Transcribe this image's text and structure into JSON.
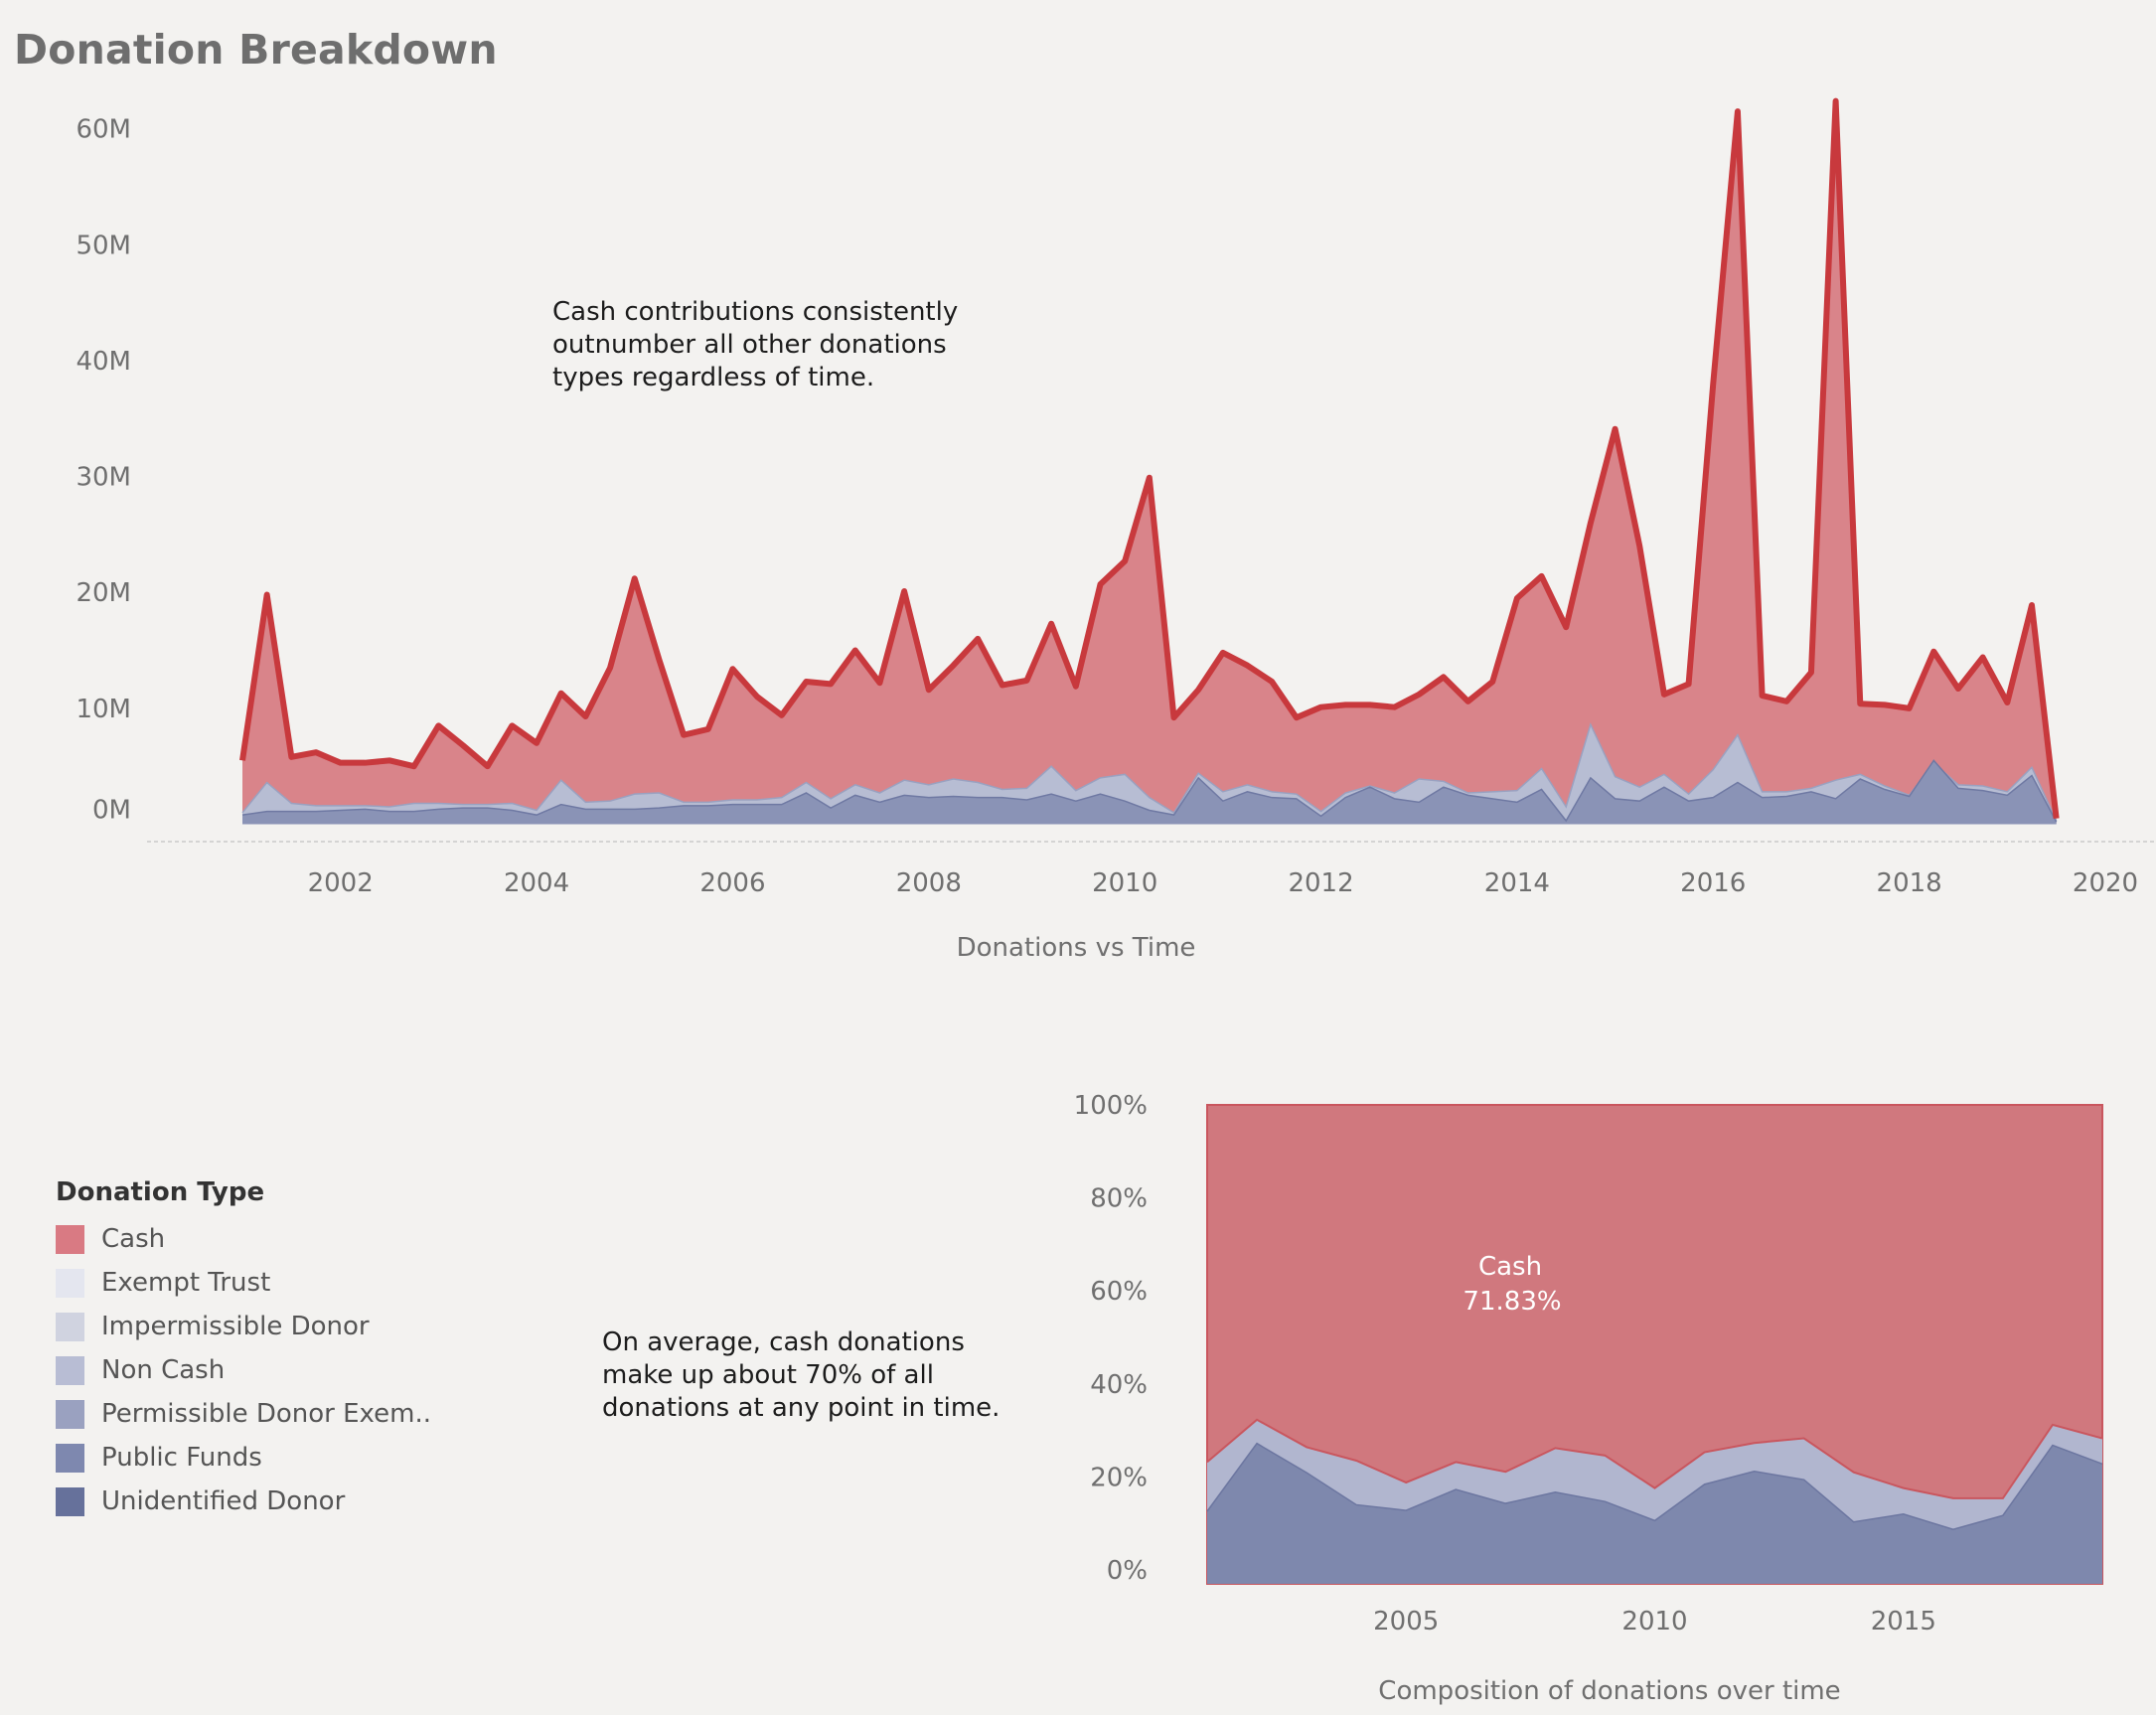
{
  "title": "Donation Breakdown",
  "annotations": {
    "top": [
      "Cash contributions consistently",
      "outnumber all other donations",
      "types regardless of time."
    ],
    "bottom": [
      "On average, cash donations",
      "make up about 70% of all",
      "donations at any point in time."
    ]
  },
  "legend": {
    "title": "Donation Type",
    "items": [
      {
        "label": "Cash",
        "color": "#d97a83"
      },
      {
        "label": "Exempt Trust",
        "color": "#e4e6ef"
      },
      {
        "label": "Impermissible Donor",
        "color": "#d0d3e0"
      },
      {
        "label": "Non Cash",
        "color": "#b8bdd4"
      },
      {
        "label": "Permissible Donor Exem..",
        "color": "#9aa1c0"
      },
      {
        "label": "Public Funds",
        "color": "#7e88af"
      },
      {
        "label": "Unidentified Donor",
        "color": "#66719b"
      }
    ]
  },
  "chart_data": [
    {
      "type": "area",
      "xlabel": "Donations vs Time",
      "ylabel": "",
      "y_ticks": [
        "0M",
        "10M",
        "20M",
        "30M",
        "40M",
        "50M",
        "60M"
      ],
      "y_tick_values": [
        0,
        10,
        20,
        30,
        40,
        50,
        60
      ],
      "x_ticks": [
        "2002",
        "2004",
        "2006",
        "2008",
        "2010",
        "2012",
        "2014",
        "2016",
        "2018",
        "2020"
      ],
      "x_tick_values": [
        2002,
        2004,
        2006,
        2008,
        2010,
        2012,
        2014,
        2016,
        2018,
        2020
      ],
      "xlim": [
        2001.0,
        2020.0
      ],
      "ylim": [
        -1.5,
        64
      ],
      "stacked": true,
      "colors": {
        "total_line": "#c8393d",
        "cash_fill": "#d9848a",
        "other_fill": "#b7bdd3",
        "base_fill": "#8a93b6"
      },
      "x": [
        2001.0,
        2001.25,
        2001.5,
        2001.75,
        2002.0,
        2002.25,
        2002.5,
        2002.75,
        2003.0,
        2003.25,
        2003.5,
        2003.75,
        2004.0,
        2004.25,
        2004.5,
        2004.75,
        2005.0,
        2005.25,
        2005.5,
        2005.75,
        2006.0,
        2006.25,
        2006.5,
        2006.75,
        2007.0,
        2007.25,
        2007.5,
        2007.75,
        2008.0,
        2008.25,
        2008.5,
        2008.75,
        2009.0,
        2009.25,
        2009.5,
        2009.75,
        2010.0,
        2010.25,
        2010.5,
        2010.75,
        2011.0,
        2011.25,
        2011.5,
        2011.75,
        2012.0,
        2012.25,
        2012.5,
        2012.75,
        2013.0,
        2013.25,
        2013.5,
        2013.75,
        2014.0,
        2014.25,
        2014.5,
        2014.75,
        2015.0,
        2015.25,
        2015.5,
        2015.75,
        2016.0,
        2016.25,
        2016.5,
        2016.75,
        2017.0,
        2017.25,
        2017.5,
        2017.75,
        2018.0,
        2018.25,
        2018.5,
        2018.75,
        2019.0,
        2019.25,
        2019.5
      ],
      "series": [
        {
          "name": "Total",
          "values": [
            5.5,
            19.8,
            5.8,
            6.2,
            5.3,
            5.3,
            5.5,
            5.0,
            8.5,
            6.8,
            5.0,
            8.5,
            7.0,
            11.3,
            9.3,
            13.5,
            21.2,
            14.2,
            7.7,
            8.2,
            13.4,
            11.0,
            9.4,
            12.3,
            12.1,
            15.0,
            12.2,
            20.1,
            11.6,
            13.7,
            16.0,
            12.0,
            12.4,
            17.3,
            11.9,
            20.7,
            22.7,
            29.9,
            9.2,
            11.6,
            14.8,
            13.7,
            12.3,
            9.2,
            10.1,
            10.3,
            10.3,
            10.1,
            11.2,
            12.7,
            10.6,
            12.3,
            19.5,
            21.4,
            17.0,
            26.0,
            34.1,
            24.0,
            11.2,
            12.1,
            38.0,
            61.5,
            11.1,
            10.6,
            13.1,
            62.4,
            10.4,
            10.3,
            10.0,
            14.9,
            11.7,
            14.4,
            10.5,
            18.9,
            0.5
          ]
        },
        {
          "name": "Other",
          "values": [
            1.0,
            3.6,
            1.8,
            1.6,
            1.6,
            1.6,
            1.5,
            1.8,
            1.8,
            1.7,
            1.7,
            1.8,
            1.2,
            3.8,
            1.9,
            2.0,
            2.6,
            2.7,
            1.9,
            1.9,
            2.1,
            2.1,
            2.3,
            3.6,
            2.2,
            3.4,
            2.7,
            3.8,
            3.4,
            3.9,
            3.6,
            3.0,
            3.1,
            5.0,
            2.9,
            4.0,
            4.3,
            2.3,
            1.0,
            4.4,
            2.8,
            3.4,
            2.8,
            2.6,
            1.1,
            2.7,
            3.3,
            2.7,
            3.9,
            3.7,
            2.7,
            2.8,
            2.9,
            4.8,
            1.5,
            8.6,
            4.1,
            3.2,
            4.3,
            2.6,
            4.7,
            7.7,
            2.8,
            2.8,
            3.1,
            3.8,
            4.3,
            3.3,
            2.5,
            5.3,
            3.4,
            3.3,
            2.8,
            4.9,
            0.3
          ]
        },
        {
          "name": "Base",
          "values": [
            0.8,
            1.1,
            1.1,
            1.1,
            1.2,
            1.3,
            1.1,
            1.1,
            1.3,
            1.4,
            1.4,
            1.2,
            0.8,
            1.7,
            1.3,
            1.3,
            1.3,
            1.4,
            1.6,
            1.6,
            1.7,
            1.7,
            1.7,
            2.7,
            1.4,
            2.5,
            1.9,
            2.5,
            2.3,
            2.4,
            2.3,
            2.3,
            2.1,
            2.6,
            2.0,
            2.6,
            2.0,
            1.2,
            0.8,
            4.0,
            2.0,
            2.8,
            2.3,
            2.2,
            0.7,
            2.3,
            3.2,
            2.2,
            1.9,
            3.2,
            2.5,
            2.2,
            1.9,
            3.0,
            0.3,
            4.0,
            2.2,
            2.0,
            3.2,
            2.0,
            2.3,
            3.6,
            2.3,
            2.4,
            2.8,
            2.2,
            3.9,
            3.0,
            2.4,
            5.5,
            3.1,
            2.9,
            2.5,
            4.2,
            0.2
          ]
        }
      ]
    },
    {
      "type": "area",
      "xlabel": "Composition of donations over time",
      "ylabel": "",
      "stacked": true,
      "percent": true,
      "y_ticks": [
        "0%",
        "20%",
        "40%",
        "60%",
        "80%",
        "100%"
      ],
      "y_tick_values": [
        0,
        20,
        40,
        60,
        80,
        100
      ],
      "x_ticks": [
        "2005",
        "2010",
        "2015"
      ],
      "x_tick_values": [
        2005,
        2010,
        2015
      ],
      "xlim": [
        2001,
        2019
      ],
      "ylim": [
        -3,
        100
      ],
      "annotation": {
        "label": "Cash",
        "value": "71.83%"
      },
      "colors": {
        "cash_fill": "#d0787e",
        "cash_line": "#c9565e",
        "other_fill": "#b1b6cf",
        "base_fill": "#7e88ad"
      },
      "x": [
        2001,
        2002,
        2003,
        2004,
        2005,
        2006,
        2007,
        2008,
        2009,
        2010,
        2011,
        2012,
        2013,
        2014,
        2015,
        2016,
        2017,
        2018,
        2019
      ],
      "series": [
        {
          "name": "Non-cash total",
          "values": [
            23.2,
            32.3,
            26.4,
            23.5,
            18.8,
            23.2,
            21.1,
            26.2,
            24.6,
            17.6,
            25.3,
            27.3,
            28.3,
            21.0,
            17.6,
            15.4,
            15.4,
            31.2,
            28.3
          ]
        },
        {
          "name": "Base",
          "values": [
            12.6,
            27.2,
            20.9,
            14.0,
            12.8,
            17.3,
            14.3,
            16.7,
            14.7,
            10.6,
            18.4,
            21.2,
            19.4,
            10.3,
            12.0,
            8.7,
            11.7,
            26.8,
            22.8
          ]
        }
      ]
    }
  ]
}
